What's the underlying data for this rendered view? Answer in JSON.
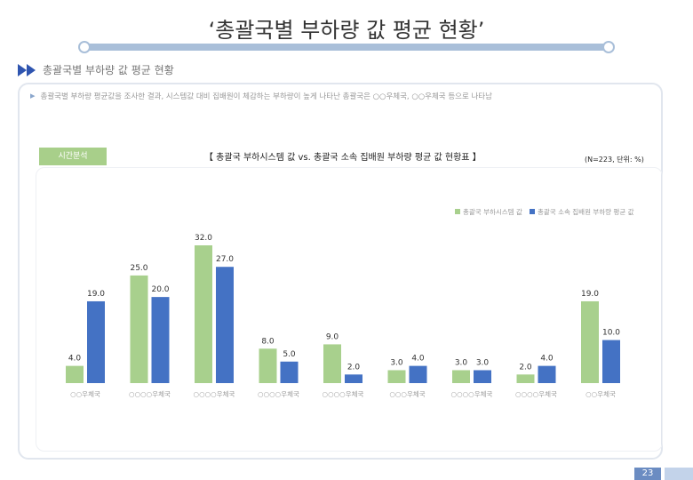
{
  "slide": {
    "title": "‘총괄국별 부하량 값 평균 현황’",
    "section_label": "총괄국별 부하량 값 평균 현황",
    "note": "총괄국별 부하량 평균값을 조사한 결과, 시스템값 대비 집배원이 체감하는 부하량이 높게 나타난 총괄국은 ○○우체국, ○○우체국 등으로 나타남",
    "badge": "시간분석",
    "chart_title": "【 총괄국 부하시스템 값 vs. 총괄국 소속 집배원 부하량 평균 값 현황표 】",
    "n_label": "(N=223, 단위: %)",
    "page_number": "23"
  },
  "chart_data": {
    "type": "bar",
    "categories": [
      "○○우체국",
      "○○○○우체국",
      "○○○○우체국",
      "○○○○우체국",
      "○○○○우체국",
      "○○○우체국",
      "○○○○우체국",
      "○○○○우체국",
      "○○우체국"
    ],
    "series": [
      {
        "name": "총괄국 부하시스템 값",
        "color": "#a8d08d",
        "values": [
          4.0,
          25.0,
          32.0,
          8.0,
          9.0,
          3.0,
          3.0,
          2.0,
          19.0
        ]
      },
      {
        "name": "총괄국 소속 집배원 부하량 평균 값",
        "color": "#4472c4",
        "values": [
          19.0,
          20.0,
          27.0,
          5.0,
          2.0,
          4.0,
          3.0,
          4.0,
          10.0
        ]
      }
    ],
    "ylim": [
      0,
      34
    ],
    "legend_position": "top-right",
    "grid": false
  }
}
